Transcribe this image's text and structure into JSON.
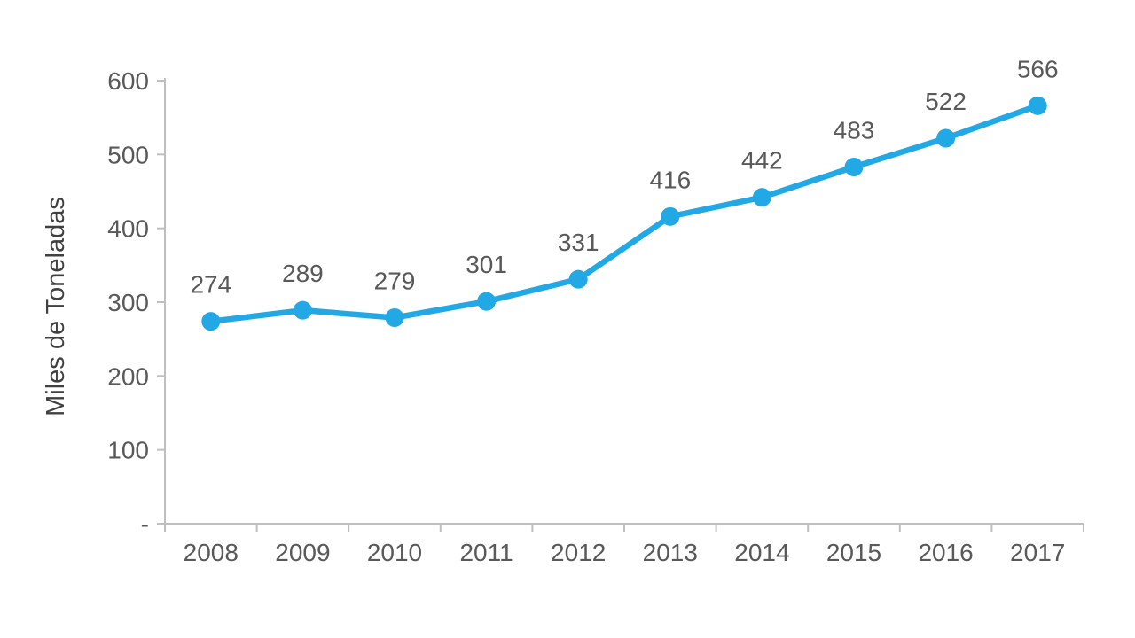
{
  "chart_data": {
    "type": "line",
    "title": "",
    "categories": [
      "2008",
      "2009",
      "2010",
      "2011",
      "2012",
      "2013",
      "2014",
      "2015",
      "2016",
      "2017"
    ],
    "series": [
      {
        "name": "Miles de Toneladas",
        "values": [
          274,
          289,
          279,
          301,
          331,
          416,
          442,
          483,
          522,
          566
        ]
      }
    ],
    "data_labels": [
      "274",
      "289",
      "279",
      "301",
      "331",
      "416",
      "442",
      "483",
      "522",
      "566"
    ],
    "xlabel": "",
    "ylabel": "Miles de Toneladas",
    "ylim": [
      0,
      600
    ],
    "y_ticks": [
      {
        "value": 0,
        "label": "-"
      },
      {
        "value": 100,
        "label": "100"
      },
      {
        "value": 200,
        "label": "200"
      },
      {
        "value": 300,
        "label": "300"
      },
      {
        "value": 400,
        "label": "400"
      },
      {
        "value": 500,
        "label": "500"
      },
      {
        "value": 600,
        "label": "600"
      }
    ],
    "grid": false,
    "legend_position": "none",
    "colors": {
      "line": "#22A8E4",
      "marker": "#22A8E4",
      "axis_line": "#BFBFBF",
      "tick_mark": "#BFBFBF",
      "axis_text": "#595959",
      "data_label_text": "#595959",
      "ylabel_text": "#404040",
      "background": "#FFFFFF"
    }
  }
}
